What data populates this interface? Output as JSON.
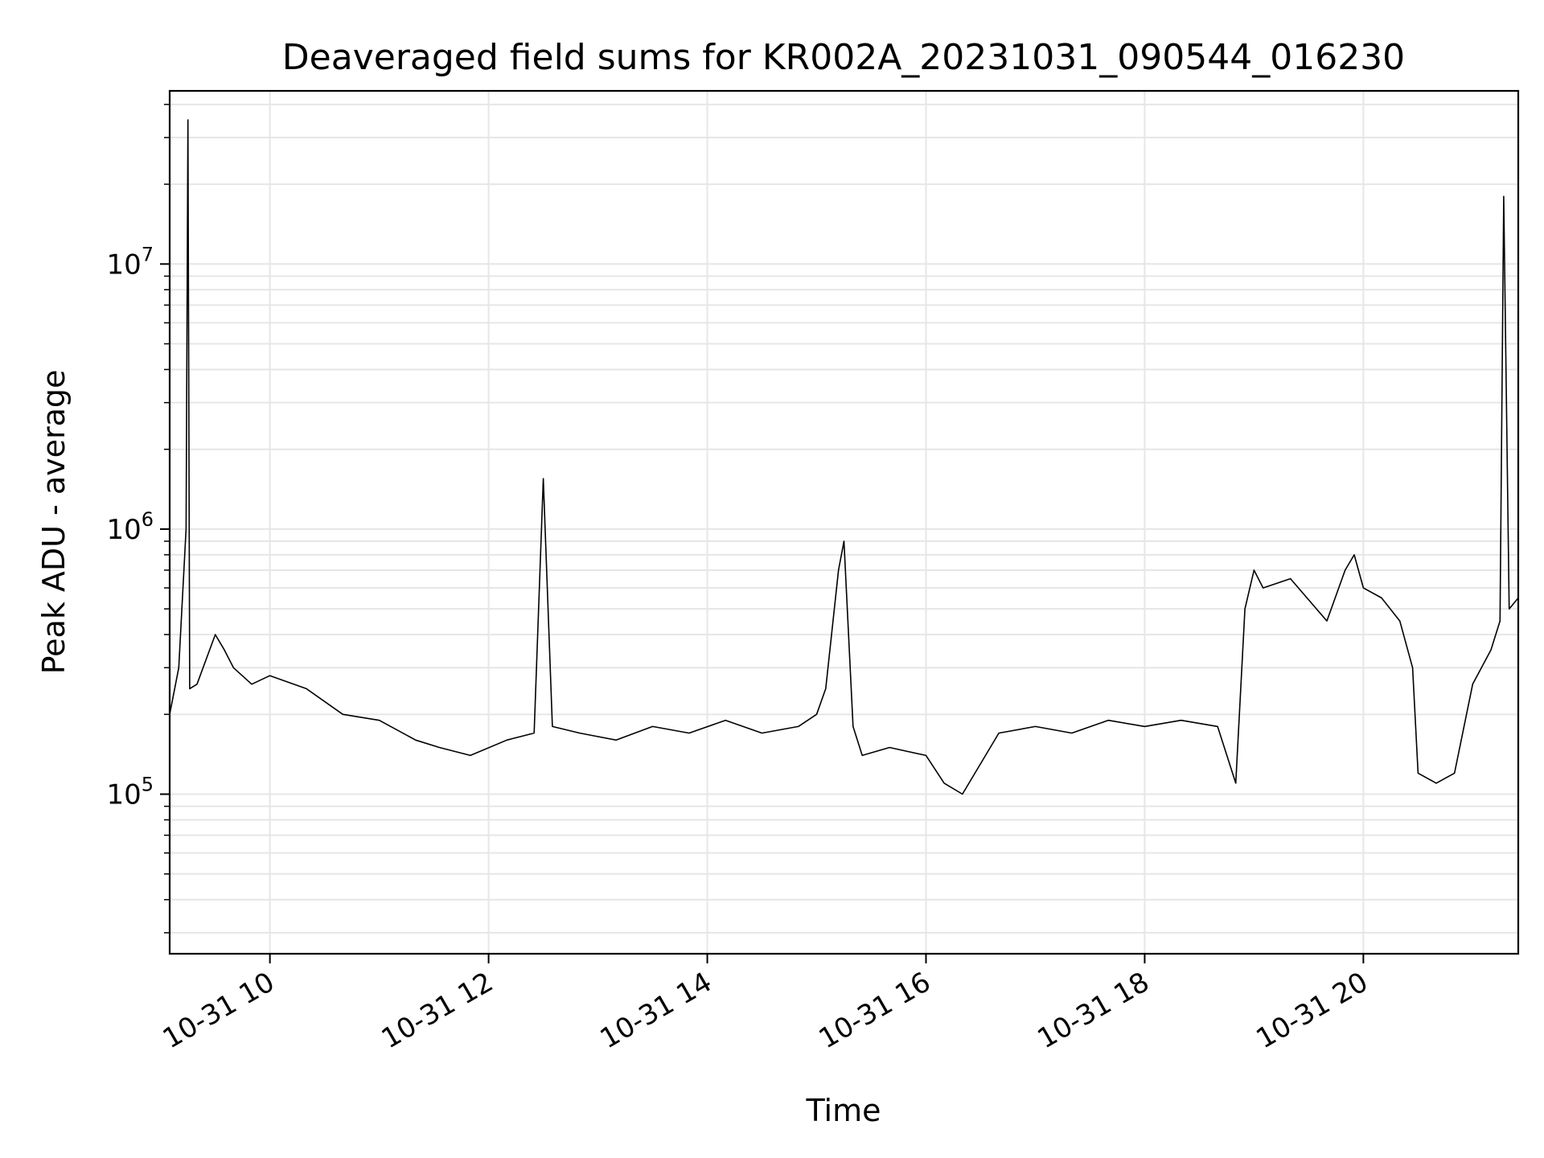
{
  "chart_data": {
    "type": "line",
    "title": "Deaveraged field sums for KR002A_20231031_090544_016230",
    "xlabel": "Time",
    "ylabel": "Peak ADU - average",
    "x_type": "datetime",
    "xlim": [
      "2023-10-31T09:05",
      "2023-10-31T21:25"
    ],
    "ylim": [
      25000,
      45000000
    ],
    "yscale": "log",
    "grid": true,
    "legend": "none",
    "line_color": "#000000",
    "grid_color": "#e6e6e6",
    "x_ticks": [
      {
        "at": "2023-10-31T10:00",
        "label": "10-31 10"
      },
      {
        "at": "2023-10-31T12:00",
        "label": "10-31 12"
      },
      {
        "at": "2023-10-31T14:00",
        "label": "10-31 14"
      },
      {
        "at": "2023-10-31T16:00",
        "label": "10-31 16"
      },
      {
        "at": "2023-10-31T18:00",
        "label": "10-31 18"
      },
      {
        "at": "2023-10-31T20:00",
        "label": "10-31 20"
      }
    ],
    "y_ticks": [
      {
        "value": 100000,
        "base": "10",
        "exp": "5"
      },
      {
        "value": 1000000,
        "base": "10",
        "exp": "6"
      },
      {
        "value": 10000000,
        "base": "10",
        "exp": "7"
      }
    ],
    "series": [
      {
        "x": [
          "2023-10-31T09:05",
          "2023-10-31T09:10",
          "2023-10-31T09:14",
          "2023-10-31T09:15",
          "2023-10-31T09:16",
          "2023-10-31T09:20",
          "2023-10-31T09:30",
          "2023-10-31T09:35",
          "2023-10-31T09:40",
          "2023-10-31T09:50",
          "2023-10-31T10:00",
          "2023-10-31T10:20",
          "2023-10-31T10:40",
          "2023-10-31T11:00",
          "2023-10-31T11:20",
          "2023-10-31T11:33",
          "2023-10-31T11:50",
          "2023-10-31T12:10",
          "2023-10-31T12:25",
          "2023-10-31T12:30",
          "2023-10-31T12:35",
          "2023-10-31T12:50",
          "2023-10-31T13:10",
          "2023-10-31T13:30",
          "2023-10-31T13:50",
          "2023-10-31T14:10",
          "2023-10-31T14:30",
          "2023-10-31T14:50",
          "2023-10-31T15:00",
          "2023-10-31T15:05",
          "2023-10-31T15:12",
          "2023-10-31T15:15",
          "2023-10-31T15:20",
          "2023-10-31T15:25",
          "2023-10-31T15:40",
          "2023-10-31T16:00",
          "2023-10-31T16:10",
          "2023-10-31T16:20",
          "2023-10-31T16:40",
          "2023-10-31T17:00",
          "2023-10-31T17:20",
          "2023-10-31T17:40",
          "2023-10-31T18:00",
          "2023-10-31T18:20",
          "2023-10-31T18:40",
          "2023-10-31T18:50",
          "2023-10-31T18:55",
          "2023-10-31T19:00",
          "2023-10-31T19:05",
          "2023-10-31T19:20",
          "2023-10-31T19:40",
          "2023-10-31T19:50",
          "2023-10-31T19:55",
          "2023-10-31T20:00",
          "2023-10-31T20:10",
          "2023-10-31T20:20",
          "2023-10-31T20:27",
          "2023-10-31T20:30",
          "2023-10-31T20:40",
          "2023-10-31T20:50",
          "2023-10-31T21:00",
          "2023-10-31T21:10",
          "2023-10-31T21:15",
          "2023-10-31T21:17",
          "2023-10-31T21:20",
          "2023-10-31T21:25"
        ],
        "values": [
          200000,
          300000,
          1000000,
          35000000,
          250000,
          260000,
          400000,
          350000,
          300000,
          260000,
          280000,
          250000,
          200000,
          190000,
          160000,
          150000,
          140000,
          160000,
          170000,
          1550000,
          180000,
          170000,
          160000,
          180000,
          170000,
          190000,
          170000,
          180000,
          200000,
          250000,
          700000,
          900000,
          180000,
          140000,
          150000,
          140000,
          110000,
          100000,
          170000,
          180000,
          170000,
          190000,
          180000,
          190000,
          180000,
          110000,
          500000,
          700000,
          600000,
          650000,
          450000,
          700000,
          800000,
          600000,
          550000,
          450000,
          300000,
          120000,
          110000,
          120000,
          260000,
          350000,
          450000,
          18000000,
          500000,
          550000
        ]
      }
    ]
  }
}
